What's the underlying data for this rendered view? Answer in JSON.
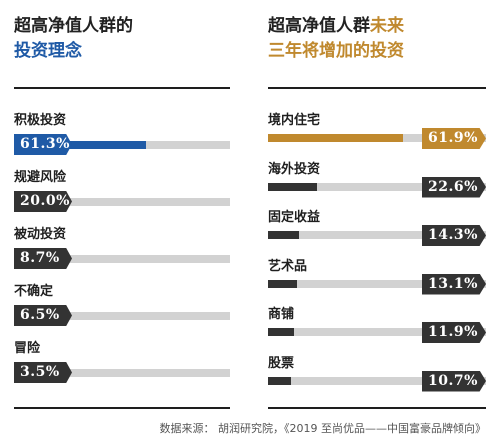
{
  "left_panel": {
    "title_line1": "超高净值人群的",
    "title_line2": "投资理念",
    "title_line2_color": "#1f5aa6"
  },
  "right_panel": {
    "title_line1_part1": "超高净值人群",
    "title_line1_part2": "未来",
    "title_line2": "三年将增加的投资",
    "accent_color": "#c0892e"
  },
  "source": "数据来源： 胡润研究院，《2019 至尚优品——中国富豪品牌倾向》",
  "chart_data": [
    {
      "type": "bar",
      "title": "超高净值人群的投资理念",
      "categories": [
        "积极投资",
        "规避风险",
        "被动投资",
        "不确定",
        "冒险"
      ],
      "values": [
        61.3,
        20.0,
        8.7,
        6.5,
        3.5
      ],
      "value_labels": [
        "61.3%",
        "20.0%",
        "8.7%",
        "6.5%",
        "3.5%"
      ],
      "highlight_color": "#1f5aa6",
      "default_color": "#333333",
      "xlim": [
        0,
        100
      ]
    },
    {
      "type": "bar",
      "title": "超高净值人群未来三年将增加的投资",
      "categories": [
        "境内住宅",
        "海外投资",
        "固定收益",
        "艺术品",
        "商铺",
        "股票"
      ],
      "values": [
        61.9,
        22.6,
        14.3,
        13.1,
        11.9,
        10.7
      ],
      "value_labels": [
        "61.9%",
        "22.6%",
        "14.3%",
        "13.1%",
        "11.9%",
        "10.7%"
      ],
      "highlight_color": "#c0892e",
      "default_color": "#333333",
      "xlim": [
        0,
        100
      ]
    }
  ]
}
